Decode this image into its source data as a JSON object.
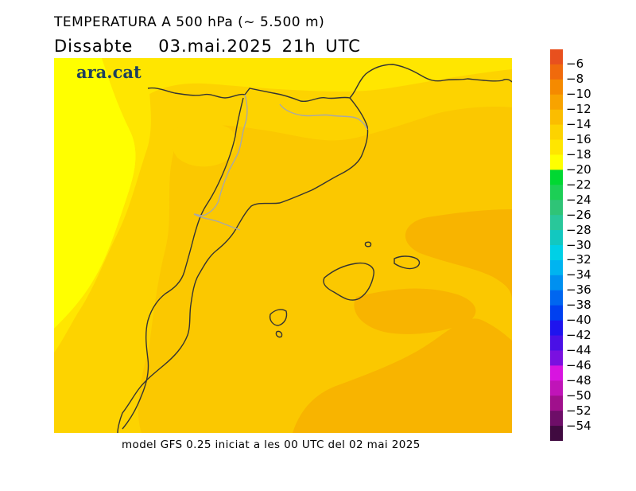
{
  "header": {
    "title": "TEMPERATURA A 500 hPa (~ 5.500 m)",
    "day": "Dissabte",
    "datetime": "03.mai.2025 21h UTC"
  },
  "logo": {
    "text": "ara.cat",
    "color": "#1d3f5e"
  },
  "footer": {
    "caption": "model GFS 0.25 iniciat a les 00 UTC del 02 mai 2025"
  },
  "legend": {
    "unit": "",
    "labels": [
      "-6",
      "-8",
      "-10",
      "-12",
      "-14",
      "-16",
      "-18",
      "-20",
      "-22",
      "-24",
      "-26",
      "-28",
      "-30",
      "-32",
      "-34",
      "-36",
      "-38",
      "-40",
      "-42",
      "-44",
      "-46",
      "-48",
      "-50",
      "-52",
      "-54"
    ],
    "colors": [
      "#e8501e",
      "#f06a0c",
      "#f58a00",
      "#f8a300",
      "#fbbd00",
      "#fdd300",
      "#ffe600",
      "#ffff00",
      "#00d832",
      "#1ccf55",
      "#2fc477",
      "#29c79a",
      "#12c8c0",
      "#00d0e6",
      "#00b4f0",
      "#0090f0",
      "#0066f0",
      "#0040f0",
      "#1e14ee",
      "#4a10e6",
      "#7a10e0",
      "#d814e0",
      "#c014b8",
      "#a0108c",
      "#6e0e68",
      "#400a40"
    ]
  },
  "map": {
    "field_colors": {
      "m18": "#ffff00",
      "m17": "#ffe600",
      "m16": "#fdd300",
      "m15": "#fbc800",
      "m14": "#f8b400"
    }
  }
}
